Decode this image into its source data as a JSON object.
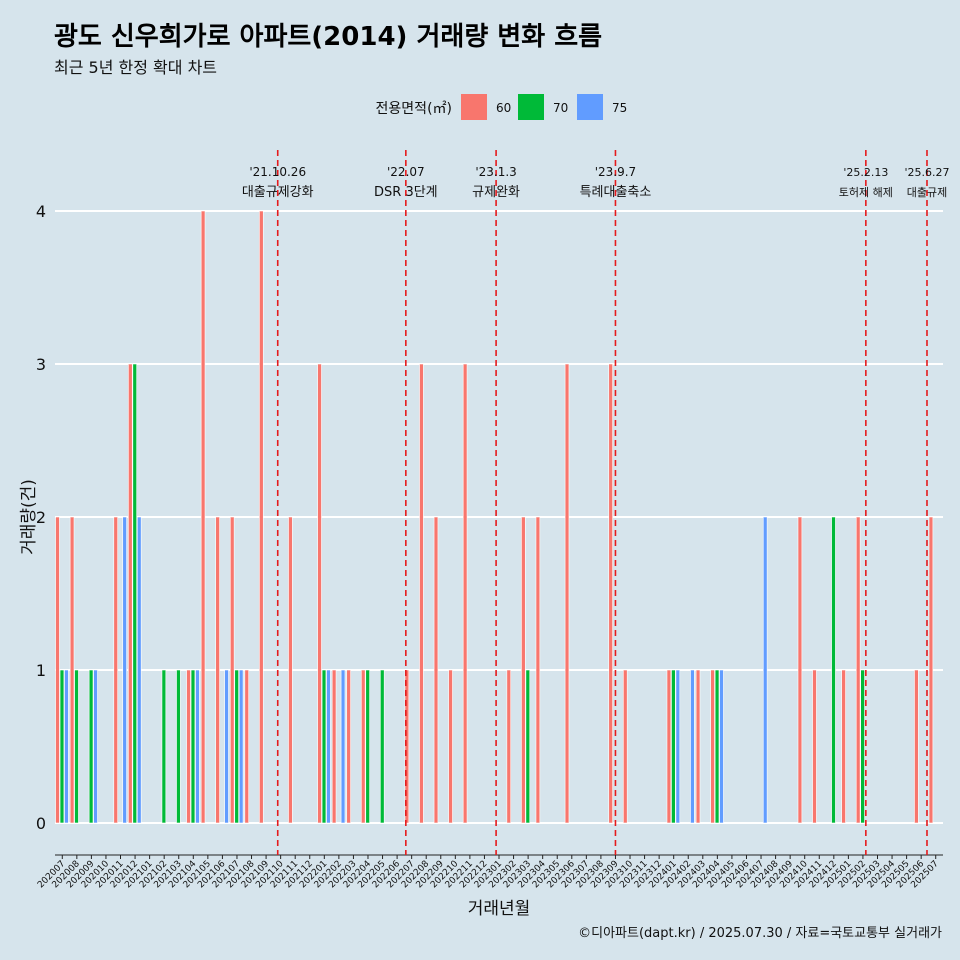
{
  "title": "광도 신우희가로 아파트(2014) 거래량 변화 흐름",
  "subtitle": "최근 5년 한정 확대 차트",
  "caption": "©디아파트(dapt.kr) / 2025.07.30 / 자료=국토교통부 실거래가",
  "colors": {
    "60": "#f8766d",
    "70": "#00ba38",
    "75": "#619cff"
  },
  "chart_data": {
    "type": "bar",
    "title": "광도 신우희가로 아파트(2014) 거래량 변화 흐름",
    "subtitle": "최근 5년 한정 확대 차트",
    "xlabel": "거래년월",
    "ylabel": "거래량(건)",
    "ylim": [
      0,
      4
    ],
    "yticks": [
      0,
      1,
      2,
      3,
      4
    ],
    "grid": true,
    "legend": {
      "title": "전용면적(㎡)",
      "placement": "top",
      "entries": [
        "60",
        "70",
        "75"
      ]
    },
    "categories": [
      "202007",
      "202008",
      "202009",
      "202010",
      "202011",
      "202012",
      "202101",
      "202102",
      "202103",
      "202104",
      "202105",
      "202106",
      "202107",
      "202108",
      "202109",
      "202110",
      "202111",
      "202112",
      "202201",
      "202202",
      "202203",
      "202204",
      "202205",
      "202206",
      "202207",
      "202208",
      "202209",
      "202210",
      "202211",
      "202212",
      "202301",
      "202302",
      "202303",
      "202304",
      "202305",
      "202306",
      "202307",
      "202308",
      "202309",
      "202310",
      "202311",
      "202312",
      "202401",
      "202402",
      "202403",
      "202404",
      "202405",
      "202406",
      "202407",
      "202408",
      "202409",
      "202410",
      "202411",
      "202412",
      "202501",
      "202502",
      "202503",
      "202504",
      "202505",
      "202506",
      "202507"
    ],
    "series": [
      {
        "name": "60",
        "values": [
          2,
          2,
          0,
          0,
          2,
          3,
          0,
          0,
          0,
          1,
          4,
          2,
          2,
          1,
          4,
          0,
          2,
          0,
          3,
          1,
          1,
          1,
          0,
          0,
          1,
          3,
          2,
          1,
          3,
          0,
          0,
          1,
          2,
          2,
          0,
          3,
          0,
          0,
          3,
          1,
          0,
          0,
          1,
          0,
          1,
          1,
          0,
          0,
          0,
          0,
          0,
          2,
          1,
          0,
          1,
          2,
          0,
          0,
          0,
          1,
          2
        ]
      },
      {
        "name": "70",
        "values": [
          1,
          1,
          1,
          0,
          0,
          3,
          0,
          1,
          1,
          1,
          0,
          0,
          1,
          0,
          0,
          0,
          0,
          0,
          1,
          0,
          0,
          1,
          1,
          0,
          0,
          0,
          0,
          0,
          0,
          0,
          0,
          0,
          1,
          0,
          0,
          0,
          0,
          0,
          0,
          0,
          0,
          0,
          1,
          0,
          0,
          1,
          0,
          0,
          0,
          0,
          0,
          0,
          0,
          2,
          0,
          1,
          0,
          0,
          0,
          0,
          0
        ]
      },
      {
        "name": "75",
        "values": [
          1,
          0,
          1,
          0,
          2,
          2,
          0,
          0,
          0,
          1,
          0,
          1,
          1,
          0,
          0,
          0,
          0,
          0,
          1,
          1,
          0,
          0,
          0,
          0,
          0,
          0,
          0,
          0,
          0,
          0,
          0,
          0,
          0,
          0,
          0,
          0,
          0,
          0,
          0,
          0,
          0,
          0,
          1,
          1,
          0,
          1,
          0,
          0,
          2,
          0,
          0,
          0,
          0,
          0,
          0,
          0,
          0,
          0,
          0,
          0,
          0
        ]
      }
    ],
    "annotations": [
      {
        "date": "202110",
        "offset": 0.3,
        "label_top": "'21.10.26",
        "label_bottom": "대출규제강화"
      },
      {
        "date": "202207",
        "offset": 0.1,
        "label_top": "'22.07",
        "label_bottom": "DSR 3단계"
      },
      {
        "date": "202301",
        "offset": 0.3,
        "label_top": "'23.1.3",
        "label_bottom": "규제완화"
      },
      {
        "date": "202309",
        "offset": 0.5,
        "label_top": "'23.9.7",
        "label_bottom": "특례대출축소"
      },
      {
        "date": "202502",
        "offset": 0.7,
        "label_top": "'25.2.13",
        "label_bottom": "토허제 해제"
      },
      {
        "date": "202506",
        "offset": 0.9,
        "label_top": "'25.6.27",
        "label_bottom": "대출규제"
      }
    ]
  }
}
